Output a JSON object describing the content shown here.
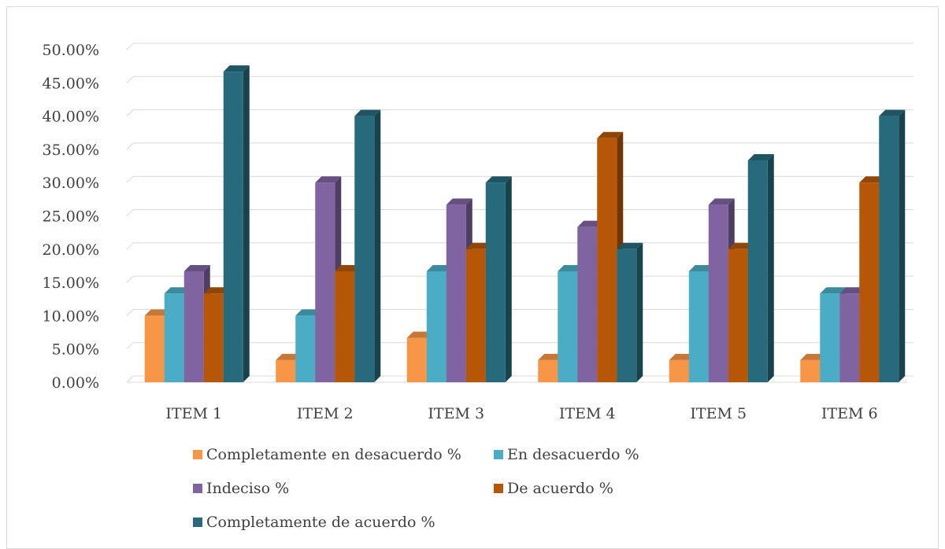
{
  "chart_data": {
    "type": "bar",
    "style": "3d-clustered-column",
    "categories": [
      "ITEM 1",
      "ITEM 2",
      "ITEM 3",
      "ITEM 4",
      "ITEM 5",
      "ITEM 6"
    ],
    "series": [
      {
        "name": "Completamente en desacuerdo %",
        "color": "#F79646",
        "values": [
          10.0,
          3.33,
          6.67,
          3.33,
          3.33,
          3.33
        ]
      },
      {
        "name": "En desacuerdo %",
        "color": "#4BACC6",
        "values": [
          13.33,
          10.0,
          16.67,
          16.67,
          16.67,
          13.33
        ]
      },
      {
        "name": "Indeciso %",
        "color": "#8064A2",
        "values": [
          16.67,
          30.0,
          26.67,
          23.33,
          26.67,
          13.33
        ]
      },
      {
        "name": "De acuerdo %",
        "color": "#B65708",
        "values": [
          13.33,
          16.67,
          20.0,
          36.67,
          20.0,
          30.0
        ]
      },
      {
        "name": "Completamente de acuerdo %",
        "color": "#276A7C",
        "values": [
          46.67,
          40.0,
          30.0,
          20.0,
          33.33,
          40.0
        ]
      }
    ],
    "y_ticks": [
      "0.00%",
      "5.00%",
      "10.00%",
      "15.00%",
      "20.00%",
      "25.00%",
      "30.00%",
      "35.00%",
      "40.00%",
      "45.00%",
      "50.00%"
    ],
    "ylim": [
      0,
      50
    ],
    "grid": true,
    "legend_position": "bottom"
  }
}
